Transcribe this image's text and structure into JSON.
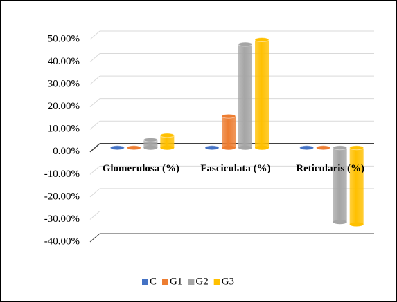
{
  "chart_data": {
    "type": "bar",
    "categories": [
      "Glomerulosa (%)",
      "Fasciculata (%)",
      "Reticularis (%)"
    ],
    "series": [
      {
        "name": "C",
        "color": "#4472c4",
        "values": [
          0,
          0,
          0
        ]
      },
      {
        "name": "G1",
        "color": "#ed7d31",
        "values": [
          0,
          14,
          0
        ]
      },
      {
        "name": "G2",
        "color": "#a5a5a5",
        "values": [
          3.5,
          46,
          -33
        ]
      },
      {
        "name": "G3",
        "color": "#ffc000",
        "values": [
          5.5,
          48,
          -34
        ]
      }
    ],
    "ylim": [
      -40,
      50
    ],
    "yticks": [
      {
        "value": -40,
        "label": "-40.00%"
      },
      {
        "value": -30,
        "label": "-30.00%"
      },
      {
        "value": -20,
        "label": "-20.00%"
      },
      {
        "value": -10,
        "label": "-10.00%"
      },
      {
        "value": 0,
        "label": "0.00%"
      },
      {
        "value": 10,
        "label": "10.00%"
      },
      {
        "value": 20,
        "label": "20.00%"
      },
      {
        "value": 30,
        "label": "30.00%"
      },
      {
        "value": 40,
        "label": "40.00%"
      },
      {
        "value": 50,
        "label": "50.00%"
      }
    ],
    "grid": true,
    "legend": "bottom"
  }
}
